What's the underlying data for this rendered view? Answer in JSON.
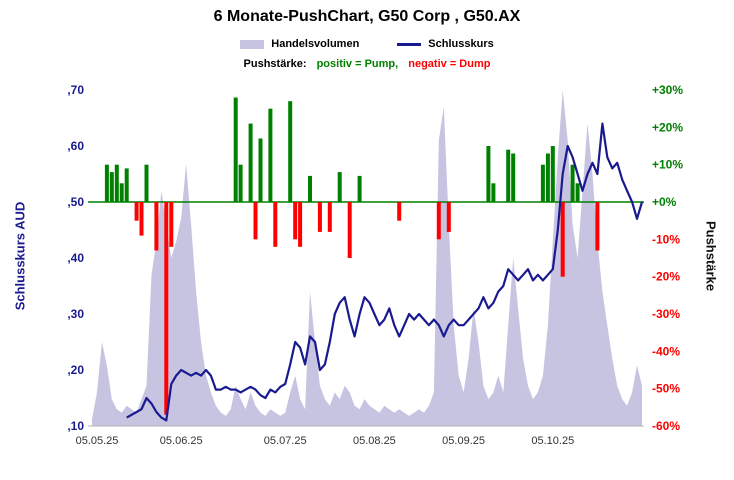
{
  "header": {
    "title": "6 Monate-PushChart,  G50 Corp , G50.AX",
    "legend": [
      {
        "label": "Handelsvolumen",
        "swatch": "area",
        "color": "#c7c4e2"
      },
      {
        "label": "Schlusskurs",
        "swatch": "line",
        "color": "#1a1a90"
      }
    ],
    "push_legend": {
      "prefix": "Pushstärke:",
      "positive": "positiv = Pump,",
      "negative": "negativ = Dump",
      "positive_color": "#008000",
      "negative_color": "#ff0000"
    }
  },
  "chart_data": {
    "type": "composite",
    "title": "6 Monate-PushChart, G50 Corp, G50.AX",
    "subtitle": "Pushstärke: positiv = Pump, negativ = Dump",
    "grid": false,
    "legend_position": "top",
    "x_ticks": {
      "labels": [
        "05.05.25",
        "05.06.25",
        "05.07.25",
        "05.08.25",
        "05.09.25",
        "05.10.25"
      ],
      "indices": [
        1,
        18,
        39,
        57,
        75,
        93
      ]
    },
    "axes": {
      "left": {
        "label": "Schlusskurs AUD",
        "ticks": [
          ",70",
          ",60",
          ",50",
          ",40",
          ",30",
          ",20",
          ",10"
        ],
        "values": [
          0.7,
          0.6,
          0.5,
          0.4,
          0.3,
          0.2,
          0.1
        ],
        "range": [
          0.1,
          0.7
        ],
        "color": "#1a1a90"
      },
      "right": {
        "label": "Pushstärke",
        "ticks": [
          "+30%",
          "+20%",
          "+10%",
          "+0%",
          "-10%",
          "-20%",
          "-30%",
          "-40%",
          "-50%",
          "-60%"
        ],
        "values": [
          30,
          20,
          10,
          0,
          -10,
          -20,
          -30,
          -40,
          -50,
          -60
        ],
        "range": [
          -60,
          30
        ],
        "positive_color": "#008000",
        "negative_color": "#ff0000"
      }
    },
    "zero_line": {
      "value": 0,
      "color": "#008000"
    },
    "series": [
      {
        "name": "Handelsvolumen",
        "type": "area",
        "color": "#c7c4e2",
        "unit": "relative 0-1",
        "values": [
          0.02,
          0.1,
          0.25,
          0.18,
          0.08,
          0.05,
          0.04,
          0.06,
          0.05,
          0.04,
          0.08,
          0.12,
          0.45,
          0.55,
          0.7,
          0.6,
          0.5,
          0.55,
          0.62,
          0.78,
          0.6,
          0.4,
          0.25,
          0.15,
          0.1,
          0.06,
          0.04,
          0.03,
          0.05,
          0.12,
          0.08,
          0.05,
          0.1,
          0.06,
          0.04,
          0.03,
          0.05,
          0.04,
          0.03,
          0.04,
          0.1,
          0.15,
          0.08,
          0.05,
          0.4,
          0.25,
          0.12,
          0.08,
          0.06,
          0.1,
          0.08,
          0.12,
          0.1,
          0.06,
          0.05,
          0.08,
          0.06,
          0.05,
          0.04,
          0.06,
          0.05,
          0.04,
          0.05,
          0.04,
          0.03,
          0.04,
          0.05,
          0.04,
          0.06,
          0.1,
          0.85,
          0.95,
          0.6,
          0.3,
          0.15,
          0.1,
          0.2,
          0.35,
          0.25,
          0.12,
          0.08,
          0.1,
          0.15,
          0.1,
          0.3,
          0.5,
          0.35,
          0.2,
          0.12,
          0.08,
          0.1,
          0.15,
          0.3,
          0.55,
          0.8,
          1.0,
          0.85,
          0.6,
          0.5,
          0.7,
          0.9,
          0.75,
          0.55,
          0.4,
          0.3,
          0.2,
          0.12,
          0.08,
          0.06,
          0.1,
          0.18,
          0.12
        ]
      },
      {
        "name": "Pushstärke",
        "type": "bar",
        "unit": "%",
        "positive_color": "#008000",
        "negative_color": "#ff0000",
        "points": [
          [
            3,
            10
          ],
          [
            4,
            8
          ],
          [
            5,
            10
          ],
          [
            6,
            5
          ],
          [
            7,
            9
          ],
          [
            9,
            -5
          ],
          [
            10,
            -9
          ],
          [
            11,
            10
          ],
          [
            13,
            -13
          ],
          [
            15,
            -57
          ],
          [
            16,
            -12
          ],
          [
            29,
            28
          ],
          [
            30,
            10
          ],
          [
            32,
            21
          ],
          [
            33,
            -10
          ],
          [
            34,
            17
          ],
          [
            36,
            25
          ],
          [
            37,
            -12
          ],
          [
            40,
            27
          ],
          [
            41,
            -10
          ],
          [
            42,
            -12
          ],
          [
            44,
            7
          ],
          [
            46,
            -8
          ],
          [
            48,
            -8
          ],
          [
            50,
            8
          ],
          [
            52,
            -15
          ],
          [
            54,
            7
          ],
          [
            62,
            -5
          ],
          [
            70,
            -10
          ],
          [
            72,
            -8
          ],
          [
            80,
            15
          ],
          [
            81,
            5
          ],
          [
            84,
            14
          ],
          [
            85,
            13
          ],
          [
            91,
            10
          ],
          [
            92,
            13
          ],
          [
            93,
            15
          ],
          [
            95,
            -20
          ],
          [
            97,
            10
          ],
          [
            98,
            5
          ],
          [
            102,
            -13
          ]
        ]
      },
      {
        "name": "Schlusskurs",
        "type": "line",
        "color": "#1a1a90",
        "unit": "AUD",
        "values": [
          null,
          null,
          null,
          null,
          null,
          null,
          null,
          0.115,
          0.12,
          0.125,
          0.13,
          0.15,
          0.14,
          0.125,
          0.115,
          0.11,
          0.175,
          0.19,
          0.2,
          0.195,
          0.19,
          0.195,
          0.19,
          0.2,
          0.19,
          0.165,
          0.165,
          0.17,
          0.165,
          0.165,
          0.16,
          0.165,
          0.17,
          0.165,
          0.155,
          0.15,
          0.165,
          0.16,
          0.17,
          0.175,
          0.21,
          0.25,
          0.24,
          0.21,
          0.26,
          0.25,
          0.2,
          0.21,
          0.25,
          0.3,
          0.32,
          0.33,
          0.29,
          0.26,
          0.3,
          0.33,
          0.32,
          0.3,
          0.28,
          0.29,
          0.31,
          0.28,
          0.26,
          0.28,
          0.3,
          0.29,
          0.3,
          0.29,
          0.28,
          0.29,
          0.28,
          0.26,
          0.28,
          0.29,
          0.28,
          0.28,
          0.29,
          0.3,
          0.31,
          0.33,
          0.31,
          0.32,
          0.34,
          0.35,
          0.38,
          0.37,
          0.36,
          0.37,
          0.38,
          0.36,
          0.37,
          0.36,
          0.37,
          0.38,
          0.45,
          0.55,
          0.6,
          0.58,
          0.55,
          0.52,
          0.55,
          0.57,
          0.55,
          0.64,
          0.58,
          0.56,
          0.57,
          0.54,
          0.52,
          0.5,
          0.47,
          0.5
        ]
      }
    ]
  }
}
